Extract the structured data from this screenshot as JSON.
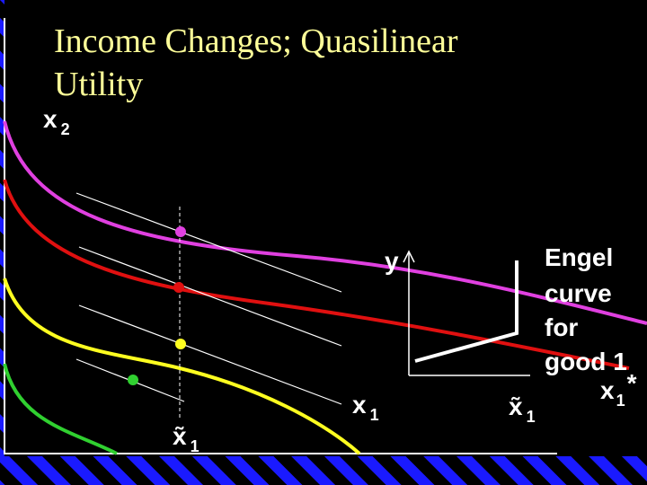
{
  "title": {
    "line1": "Income Changes; Quasilinear",
    "line2": "Utility"
  },
  "main_axes": {
    "y_label": {
      "base": "x",
      "sub": "2"
    },
    "x_label": {
      "base": "x",
      "sub": "1"
    },
    "x_marker": {
      "base": "x̃",
      "sub": "1"
    }
  },
  "engel_axes": {
    "y_label": "y",
    "x_marker": {
      "base": "x̃",
      "sub": "1"
    },
    "x_label": {
      "base": "x",
      "sub": "1",
      "sup": "*"
    }
  },
  "engel_caption": {
    "lines": [
      "Engel",
      "curve",
      "for",
      "good 1"
    ]
  }
}
